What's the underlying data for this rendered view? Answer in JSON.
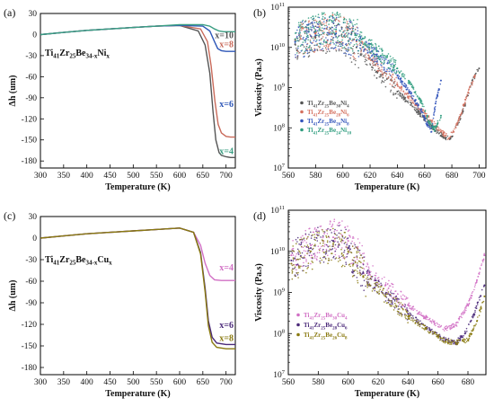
{
  "chart_data": [
    {
      "id": "a",
      "panel_label": "(a)",
      "type": "line",
      "xlabel": "Temperature (K)",
      "ylabel": "Δh (um)",
      "xlim": [
        300,
        720
      ],
      "ylim": [
        -190,
        30
      ],
      "xticks": [
        300,
        350,
        400,
        450,
        500,
        550,
        600,
        650,
        700
      ],
      "yticks": [
        30,
        0,
        -30,
        -60,
        -90,
        -120,
        -150,
        -180
      ],
      "formula": {
        "base": "Ti",
        "sub1": "41",
        "mid1": "Zr",
        "sub2": "25",
        "mid2": "Be",
        "sub3": "34-x",
        "end": "Ni",
        "sub4": "x"
      },
      "series": [
        {
          "name": "x=4",
          "color": "#555555",
          "x": [
            300,
            350,
            400,
            450,
            500,
            550,
            600,
            640,
            655,
            665,
            672,
            678,
            685,
            690,
            700,
            710,
            720
          ],
          "y": [
            0,
            3,
            6,
            8,
            10,
            12,
            13,
            5,
            -15,
            -55,
            -110,
            -150,
            -168,
            -172,
            -174,
            -175,
            -175
          ]
        },
        {
          "name": "x=6",
          "color": "#c96a5a",
          "x": [
            300,
            350,
            400,
            450,
            500,
            550,
            600,
            645,
            660,
            668,
            676,
            683,
            690,
            700,
            710,
            720
          ],
          "y": [
            0,
            3,
            6,
            8,
            10,
            12,
            13,
            8,
            -10,
            -45,
            -95,
            -128,
            -140,
            -145,
            -146,
            -146
          ]
        },
        {
          "name": "x=8",
          "color": "#2e57b8",
          "x": [
            300,
            350,
            400,
            450,
            500,
            550,
            600,
            650,
            665,
            675,
            682,
            690,
            700,
            720
          ],
          "y": [
            0,
            3,
            6,
            8,
            10,
            12,
            13,
            12,
            5,
            -10,
            -20,
            -23,
            -24,
            -24
          ]
        },
        {
          "name": "x=10",
          "color": "#3a9e82",
          "x": [
            300,
            350,
            400,
            450,
            500,
            550,
            600,
            650,
            665,
            675,
            685,
            695,
            720
          ],
          "y": [
            0,
            3,
            6,
            8,
            10,
            12,
            14,
            14,
            12,
            8,
            5,
            4,
            4
          ]
        }
      ],
      "annotations": [
        "x=10",
        "x=8",
        "x=6",
        "x=4"
      ]
    },
    {
      "id": "b",
      "panel_label": "(b)",
      "type": "scatter",
      "yscale": "log",
      "xlabel": "Temperature (K)",
      "ylabel": "Viscosity (Pa.s)",
      "xlim": [
        560,
        705
      ],
      "ylim": [
        10000000,
        100000000000
      ],
      "xticks": [
        560,
        580,
        600,
        620,
        640,
        660,
        680,
        700
      ],
      "yticks": [
        {
          "base": "10",
          "exp": "7"
        },
        {
          "base": "10",
          "exp": "8"
        },
        {
          "base": "10",
          "exp": "9"
        },
        {
          "base": "10",
          "exp": "10"
        },
        {
          "base": "10",
          "exp": "11"
        }
      ],
      "series": [
        {
          "name": "Ti41Zr25Be30Ni4",
          "color": "#555555",
          "legend": {
            "base": "Ti",
            "sub1": "41",
            "mid1": "Zr",
            "sub2": "25",
            "mid2": "Be",
            "sub3": "30",
            "end": "Ni",
            "sub4": "4"
          },
          "x": [
            565,
            580,
            595,
            610,
            625,
            640,
            655,
            665,
            675,
            680,
            688,
            695,
            700
          ],
          "y": [
            12000000000,
            18000000000,
            22000000000,
            10000000000,
            2500000000,
            800000000,
            250000000,
            110000000,
            55000000,
            60000000,
            250000000,
            1500000000,
            3000000000
          ]
        },
        {
          "name": "Ti41Zr25Be28Ni6",
          "color": "#d4705e",
          "legend": {
            "base": "Ti",
            "sub1": "41",
            "mid1": "Zr",
            "sub2": "25",
            "mid2": "Be",
            "sub3": "28",
            "end": "Ni",
            "sub4": "6"
          },
          "x": [
            565,
            580,
            595,
            610,
            625,
            640,
            655,
            665,
            672,
            678,
            685,
            690,
            697
          ],
          "y": [
            15000000000,
            22000000000,
            25000000000,
            14000000000,
            4000000000,
            1200000000,
            350000000,
            150000000,
            80000000,
            55000000,
            150000000,
            500000000,
            2000000000
          ]
        },
        {
          "name": "Ti41Zr25Be26Ni8",
          "color": "#3355bb",
          "legend": {
            "base": "Ti",
            "sub1": "41",
            "mid1": "Zr",
            "sub2": "25",
            "mid2": "Be",
            "sub3": "26",
            "end": "Ni",
            "sub4": "8"
          },
          "x": [
            565,
            580,
            595,
            610,
            625,
            640,
            650,
            658,
            662,
            665,
            668,
            672
          ],
          "y": [
            14000000000,
            20000000000,
            22000000000,
            15000000000,
            6000000000,
            2000000000,
            700000000,
            250000000,
            120000000,
            80000000,
            400000000,
            1500000000
          ]
        },
        {
          "name": "Ti41Zr25Be24Ni10",
          "color": "#2e9c7e",
          "legend": {
            "base": "Ti",
            "sub1": "41",
            "mid1": "Zr",
            "sub2": "25",
            "mid2": "Be",
            "sub3": "24",
            "end": "Ni",
            "sub4": "10"
          },
          "x": [
            565,
            580,
            595,
            610,
            625,
            640,
            650,
            658,
            663,
            667,
            672
          ],
          "y": [
            16000000000,
            25000000000,
            28000000000,
            20000000000,
            8000000000,
            3000000000,
            1200000000,
            400000000,
            150000000,
            90000000,
            200000000
          ]
        }
      ]
    },
    {
      "id": "c",
      "panel_label": "(c)",
      "type": "line",
      "xlabel": "Temperature (K)",
      "ylabel": "Δh (um)",
      "xlim": [
        300,
        720
      ],
      "ylim": [
        -190,
        30
      ],
      "xticks": [
        300,
        350,
        400,
        450,
        500,
        550,
        600,
        650,
        700
      ],
      "yticks": [
        30,
        0,
        -30,
        -60,
        -90,
        -120,
        -150,
        -180
      ],
      "formula": {
        "base": "Ti",
        "sub1": "41",
        "mid1": "Zr",
        "sub2": "25",
        "mid2": "Be",
        "sub3": "34-x",
        "end": "Cu",
        "sub4": "x"
      },
      "series": [
        {
          "name": "x=4",
          "color": "#d16fc4",
          "x": [
            300,
            350,
            400,
            450,
            500,
            550,
            600,
            630,
            645,
            655,
            665,
            675,
            690,
            720
          ],
          "y": [
            0,
            3,
            6,
            8,
            10,
            12,
            14,
            8,
            -10,
            -35,
            -52,
            -58,
            -59,
            -59
          ]
        },
        {
          "name": "x=6",
          "color": "#4b2a7a",
          "x": [
            300,
            350,
            400,
            450,
            500,
            550,
            600,
            630,
            645,
            655,
            662,
            670,
            680,
            700,
            720
          ],
          "y": [
            0,
            3,
            6,
            8,
            10,
            12,
            14,
            8,
            -20,
            -70,
            -115,
            -138,
            -146,
            -148,
            -148
          ]
        },
        {
          "name": "x=8",
          "color": "#8a7a10",
          "x": [
            300,
            350,
            400,
            450,
            500,
            550,
            600,
            630,
            645,
            655,
            662,
            670,
            680,
            700,
            720
          ],
          "y": [
            0,
            3,
            6,
            8,
            10,
            12,
            14,
            8,
            -22,
            -75,
            -122,
            -145,
            -152,
            -154,
            -154
          ]
        }
      ],
      "annotations": [
        "x=4",
        "x=6",
        "x=8"
      ]
    },
    {
      "id": "d",
      "panel_label": "(d)",
      "type": "scatter",
      "yscale": "log",
      "xlabel": "Temperature (K)",
      "ylabel": "Viscosity (Pa.s)",
      "xlim": [
        560,
        692
      ],
      "ylim": [
        10000000,
        100000000000
      ],
      "xticks": [
        560,
        580,
        600,
        620,
        640,
        660,
        680
      ],
      "yticks": [
        {
          "base": "10",
          "exp": "7"
        },
        {
          "base": "10",
          "exp": "8"
        },
        {
          "base": "10",
          "exp": "9"
        },
        {
          "base": "10",
          "exp": "10"
        },
        {
          "base": "10",
          "exp": "11"
        }
      ],
      "series": [
        {
          "name": "Ti41Zr25Be30Cu4",
          "color": "#d16fc4",
          "legend": {
            "base": "Ti",
            "sub1": "41",
            "mid1": "Zr",
            "sub2": "25",
            "mid2": "Be",
            "sub3": "30",
            "end": "Cu",
            "sub4": "4"
          },
          "x": [
            562,
            575,
            590,
            600,
            610,
            625,
            640,
            655,
            665,
            672,
            680,
            686,
            691
          ],
          "y": [
            8000000000,
            14000000000,
            22000000000,
            18000000000,
            5000000000,
            1500000000,
            500000000,
            200000000,
            130000000,
            160000000,
            500000000,
            2000000000,
            8000000000
          ]
        },
        {
          "name": "Ti41Zr25Be28Cu6",
          "color": "#4b2a7a",
          "legend": {
            "base": "Ti",
            "sub1": "41",
            "mid1": "Zr",
            "sub2": "25",
            "mid2": "Be",
            "sub3": "28",
            "end": "Cu",
            "sub4": "6"
          },
          "x": [
            562,
            575,
            590,
            600,
            610,
            625,
            640,
            655,
            665,
            672,
            678,
            684,
            691
          ],
          "y": [
            6000000000,
            12000000000,
            18000000000,
            12000000000,
            3000000000,
            900000000,
            300000000,
            120000000,
            70000000,
            60000000,
            100000000,
            300000000,
            1500000000
          ]
        },
        {
          "name": "Ti41Zr25Be26Cu8",
          "color": "#8a7a10",
          "legend": {
            "base": "Ti",
            "sub1": "41",
            "mid1": "Zr",
            "sub2": "25",
            "mid2": "Be",
            "sub3": "26",
            "end": "Cu",
            "sub4": "8"
          },
          "x": [
            562,
            575,
            590,
            600,
            610,
            625,
            640,
            655,
            665,
            672,
            680,
            686,
            691
          ],
          "y": [
            5000000000,
            10000000000,
            15000000000,
            10000000000,
            2500000000,
            800000000,
            260000000,
            110000000,
            65000000,
            60000000,
            70000000,
            200000000,
            800000000
          ]
        }
      ]
    }
  ]
}
